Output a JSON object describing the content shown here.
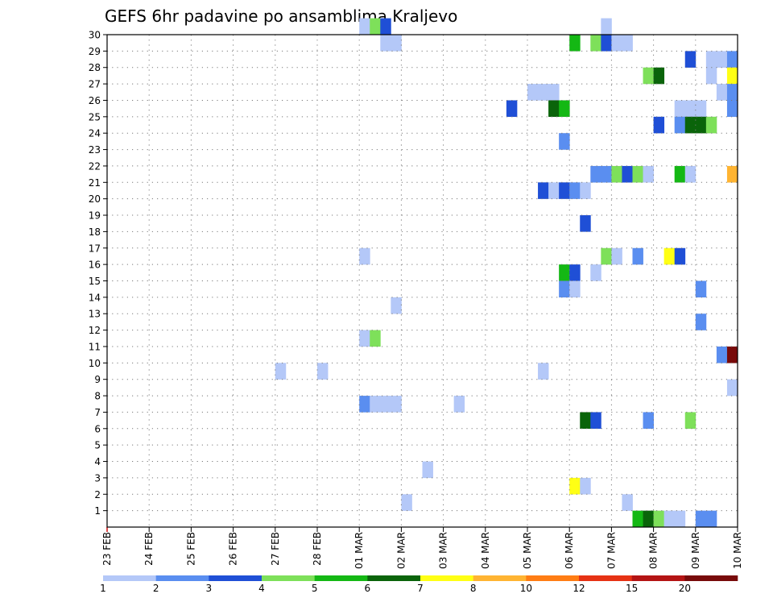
{
  "chart_data": {
    "type": "heatmap",
    "title": "GEFS 6hr padavine po ansamblima Kraljevo",
    "xlabel": "",
    "ylabel": "",
    "x_tick_labels": [
      "23 FEB",
      "24 FEB",
      "25 FEB",
      "26 FEB",
      "27 FEB",
      "28 FEB",
      "01 MAR",
      "02 MAR",
      "03 MAR",
      "04 MAR",
      "05 MAR",
      "06 MAR",
      "07 MAR",
      "08 MAR",
      "09 MAR",
      "10 MAR"
    ],
    "y_tick_labels": [
      "1",
      "2",
      "3",
      "4",
      "5",
      "6",
      "7",
      "8",
      "9",
      "10",
      "11",
      "12",
      "13",
      "14",
      "15",
      "16",
      "17",
      "18",
      "19",
      "20",
      "21",
      "22",
      "23",
      "24",
      "25",
      "26",
      "27",
      "28",
      "29",
      "30"
    ],
    "x_range_days": [
      0,
      15
    ],
    "y_range": [
      0,
      30
    ],
    "grid": true,
    "colorbar": {
      "labels": [
        "1",
        "2",
        "3",
        "4",
        "5",
        "6",
        "7",
        "8",
        "10",
        "12",
        "15",
        "20"
      ],
      "colors": [
        "#b4c8f8",
        "#5a8ef0",
        "#1f4fd6",
        "#7ee05a",
        "#14b814",
        "#0a640a",
        "#ffff14",
        "#ffb432",
        "#ff7d14",
        "#e63214",
        "#b41414",
        "#780a0a"
      ]
    },
    "cells": [
      {
        "day": 6.0,
        "member": 30,
        "level": 0
      },
      {
        "day": 6.25,
        "member": 30,
        "level": 3
      },
      {
        "day": 6.5,
        "member": 30,
        "level": 2
      },
      {
        "day": 11.75,
        "member": 30,
        "level": 0
      },
      {
        "day": 6.5,
        "member": 29,
        "level": 0
      },
      {
        "day": 6.75,
        "member": 29,
        "level": 0
      },
      {
        "day": 11.0,
        "member": 29,
        "level": 4
      },
      {
        "day": 11.5,
        "member": 29,
        "level": 3
      },
      {
        "day": 11.75,
        "member": 29,
        "level": 2
      },
      {
        "day": 12.0,
        "member": 29,
        "level": 0
      },
      {
        "day": 12.25,
        "member": 29,
        "level": 0
      },
      {
        "day": 13.75,
        "member": 28,
        "level": 2
      },
      {
        "day": 14.25,
        "member": 28,
        "level": 0
      },
      {
        "day": 14.5,
        "member": 28,
        "level": 0
      },
      {
        "day": 14.75,
        "member": 28,
        "level": 1
      },
      {
        "day": 12.75,
        "member": 27,
        "level": 3
      },
      {
        "day": 13.0,
        "member": 27,
        "level": 5
      },
      {
        "day": 14.25,
        "member": 27,
        "level": 0
      },
      {
        "day": 14.75,
        "member": 27,
        "level": 6
      },
      {
        "day": 10.0,
        "member": 26,
        "level": 0
      },
      {
        "day": 10.25,
        "member": 26,
        "level": 0
      },
      {
        "day": 10.5,
        "member": 26,
        "level": 0
      },
      {
        "day": 14.5,
        "member": 26,
        "level": 0
      },
      {
        "day": 14.75,
        "member": 26,
        "level": 1
      },
      {
        "day": 9.5,
        "member": 25,
        "level": 2
      },
      {
        "day": 10.5,
        "member": 25,
        "level": 5
      },
      {
        "day": 10.75,
        "member": 25,
        "level": 4
      },
      {
        "day": 13.5,
        "member": 25,
        "level": 0
      },
      {
        "day": 13.75,
        "member": 25,
        "level": 0
      },
      {
        "day": 14.0,
        "member": 25,
        "level": 0
      },
      {
        "day": 14.75,
        "member": 25,
        "level": 1
      },
      {
        "day": 13.0,
        "member": 24,
        "level": 2
      },
      {
        "day": 13.5,
        "member": 24,
        "level": 1
      },
      {
        "day": 13.75,
        "member": 24,
        "level": 5
      },
      {
        "day": 14.0,
        "member": 24,
        "level": 5
      },
      {
        "day": 14.25,
        "member": 24,
        "level": 3
      },
      {
        "day": 10.75,
        "member": 23,
        "level": 1
      },
      {
        "day": 11.5,
        "member": 21,
        "level": 1
      },
      {
        "day": 11.75,
        "member": 21,
        "level": 1
      },
      {
        "day": 12.0,
        "member": 21,
        "level": 3
      },
      {
        "day": 12.25,
        "member": 21,
        "level": 2
      },
      {
        "day": 12.5,
        "member": 21,
        "level": 3
      },
      {
        "day": 12.75,
        "member": 21,
        "level": 0
      },
      {
        "day": 13.5,
        "member": 21,
        "level": 4
      },
      {
        "day": 13.75,
        "member": 21,
        "level": 0
      },
      {
        "day": 14.75,
        "member": 21,
        "level": 7
      },
      {
        "day": 10.25,
        "member": 20,
        "level": 2
      },
      {
        "day": 10.5,
        "member": 20,
        "level": 0
      },
      {
        "day": 10.75,
        "member": 20,
        "level": 2
      },
      {
        "day": 11.0,
        "member": 20,
        "level": 1
      },
      {
        "day": 11.25,
        "member": 20,
        "level": 0
      },
      {
        "day": 11.25,
        "member": 18,
        "level": 2
      },
      {
        "day": 6.0,
        "member": 16,
        "level": 0
      },
      {
        "day": 11.75,
        "member": 16,
        "level": 3
      },
      {
        "day": 12.0,
        "member": 16,
        "level": 0
      },
      {
        "day": 12.5,
        "member": 16,
        "level": 1
      },
      {
        "day": 13.25,
        "member": 16,
        "level": 6
      },
      {
        "day": 13.5,
        "member": 16,
        "level": 2
      },
      {
        "day": 10.75,
        "member": 15,
        "level": 4
      },
      {
        "day": 11.0,
        "member": 15,
        "level": 2
      },
      {
        "day": 11.5,
        "member": 15,
        "level": 0
      },
      {
        "day": 10.75,
        "member": 14,
        "level": 1
      },
      {
        "day": 11.0,
        "member": 14,
        "level": 0
      },
      {
        "day": 14.0,
        "member": 14,
        "level": 1
      },
      {
        "day": 6.75,
        "member": 13,
        "level": 0
      },
      {
        "day": 14.0,
        "member": 12,
        "level": 1
      },
      {
        "day": 6.0,
        "member": 11,
        "level": 0
      },
      {
        "day": 6.25,
        "member": 11,
        "level": 3
      },
      {
        "day": 14.5,
        "member": 10,
        "level": 1
      },
      {
        "day": 14.75,
        "member": 10,
        "level": 11
      },
      {
        "day": 4.0,
        "member": 9,
        "level": 0
      },
      {
        "day": 5.0,
        "member": 9,
        "level": 0
      },
      {
        "day": 10.25,
        "member": 9,
        "level": 0
      },
      {
        "day": 14.75,
        "member": 8,
        "level": 0
      },
      {
        "day": 6.0,
        "member": 7,
        "level": 1
      },
      {
        "day": 6.25,
        "member": 7,
        "level": 0
      },
      {
        "day": 6.5,
        "member": 7,
        "level": 0
      },
      {
        "day": 6.75,
        "member": 7,
        "level": 0
      },
      {
        "day": 8.25,
        "member": 7,
        "level": 0
      },
      {
        "day": 11.25,
        "member": 6,
        "level": 5
      },
      {
        "day": 11.5,
        "member": 6,
        "level": 2
      },
      {
        "day": 12.75,
        "member": 6,
        "level": 1
      },
      {
        "day": 13.75,
        "member": 6,
        "level": 3
      },
      {
        "day": 7.5,
        "member": 3,
        "level": 0
      },
      {
        "day": 11.0,
        "member": 2,
        "level": 6
      },
      {
        "day": 11.25,
        "member": 2,
        "level": 0
      },
      {
        "day": 7.0,
        "member": 1,
        "level": 0
      },
      {
        "day": 12.25,
        "member": 1,
        "level": 0
      },
      {
        "day": 12.5,
        "member": 0,
        "level": 4
      },
      {
        "day": 12.75,
        "member": 0,
        "level": 5
      },
      {
        "day": 13.0,
        "member": 0,
        "level": 3
      },
      {
        "day": 13.25,
        "member": 0,
        "level": 0
      },
      {
        "day": 13.5,
        "member": 0,
        "level": 0
      },
      {
        "day": 14.0,
        "member": 0,
        "level": 1
      },
      {
        "day": 14.25,
        "member": 0,
        "level": 1
      }
    ]
  }
}
